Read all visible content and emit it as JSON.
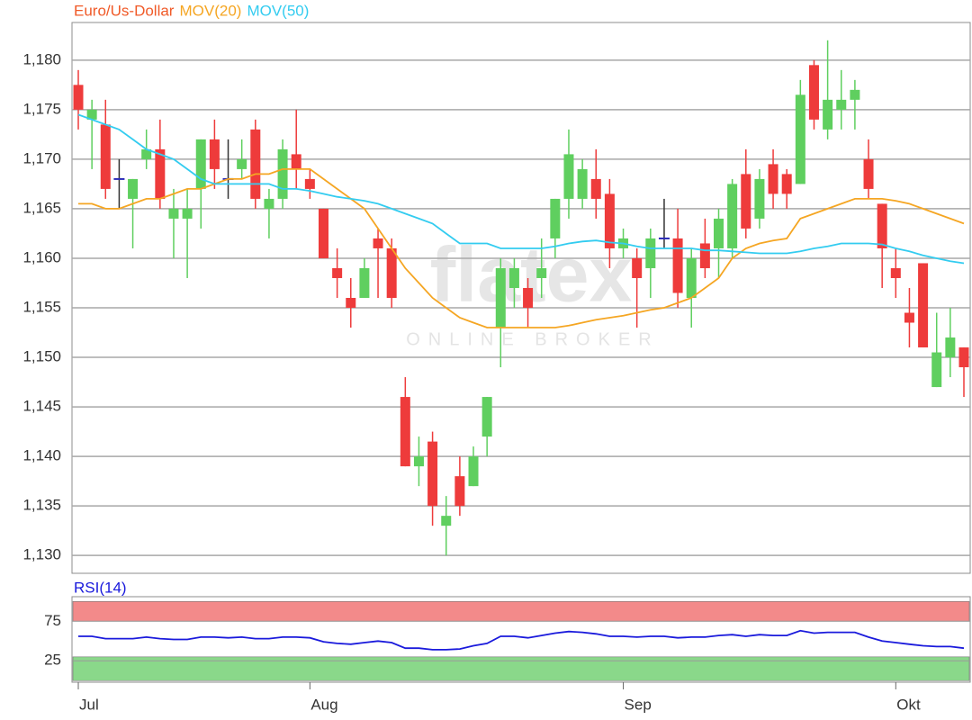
{
  "chart_data": [
    {
      "type": "candlestick",
      "name": "Euro/Us-Dollar",
      "name_color": "#f05a28",
      "watermark": "flatex",
      "watermark_tagline": "ONLINE BROKER",
      "categories": [
        "Jul",
        null,
        null,
        null,
        null,
        null,
        null,
        null,
        null,
        null,
        null,
        null,
        null,
        null,
        null,
        null,
        null,
        "Aug",
        null,
        null,
        null,
        null,
        null,
        null,
        null,
        null,
        null,
        null,
        null,
        null,
        null,
        null,
        null,
        null,
        null,
        null,
        null,
        null,
        null,
        null,
        "Sep",
        null,
        null,
        null,
        null,
        null,
        null,
        null,
        null,
        null,
        null,
        null,
        null,
        null,
        null,
        null,
        null,
        null,
        null,
        null,
        "Okt",
        null,
        null,
        null,
        null,
        null
      ],
      "open": [
        1.1775,
        1.174,
        1.1735,
        1.168,
        1.166,
        1.17,
        1.171,
        1.164,
        1.164,
        1.167,
        1.172,
        1.168,
        1.169,
        1.173,
        1.165,
        1.166,
        1.1705,
        1.168,
        1.165,
        1.159,
        1.156,
        1.156,
        1.162,
        1.161,
        1.146,
        1.139,
        1.1415,
        1.133,
        1.138,
        1.137,
        1.142,
        1.153,
        1.157,
        1.157,
        1.158,
        1.162,
        1.166,
        1.166,
        1.168,
        1.1665,
        1.161,
        1.16,
        1.159,
        1.162,
        1.162,
        1.156,
        1.1615,
        1.161,
        1.161,
        1.1685,
        1.164,
        1.1695,
        1.1685,
        1.1675,
        1.1795,
        1.173,
        1.175,
        1.176,
        1.17,
        1.1655,
        1.159,
        1.1545,
        1.1595,
        1.147,
        1.15,
        1.151
      ],
      "high": [
        1.179,
        1.176,
        1.176,
        1.17,
        1.168,
        1.173,
        1.174,
        1.167,
        1.167,
        1.172,
        1.174,
        1.172,
        1.172,
        1.174,
        1.167,
        1.172,
        1.175,
        1.169,
        1.165,
        1.161,
        1.158,
        1.16,
        1.163,
        1.162,
        1.148,
        1.142,
        1.1425,
        1.136,
        1.14,
        1.141,
        1.146,
        1.16,
        1.16,
        1.158,
        1.162,
        1.166,
        1.173,
        1.17,
        1.171,
        1.168,
        1.163,
        1.161,
        1.163,
        1.166,
        1.165,
        1.161,
        1.164,
        1.165,
        1.168,
        1.171,
        1.169,
        1.171,
        1.169,
        1.178,
        1.18,
        1.182,
        1.179,
        1.178,
        1.172,
        1.1655,
        1.161,
        1.157,
        1.1595,
        1.1545,
        1.155,
        1.151
      ],
      "low": [
        1.173,
        1.169,
        1.166,
        1.165,
        1.161,
        1.169,
        1.165,
        1.16,
        1.158,
        1.163,
        1.167,
        1.166,
        1.168,
        1.165,
        1.162,
        1.165,
        1.167,
        1.166,
        1.16,
        1.156,
        1.153,
        1.156,
        1.156,
        1.155,
        1.139,
        1.137,
        1.133,
        1.13,
        1.134,
        1.137,
        1.14,
        1.149,
        1.155,
        1.153,
        1.156,
        1.16,
        1.164,
        1.165,
        1.164,
        1.159,
        1.16,
        1.153,
        1.156,
        1.161,
        1.155,
        1.153,
        1.158,
        1.158,
        1.16,
        1.162,
        1.163,
        1.165,
        1.165,
        1.1675,
        1.173,
        1.172,
        1.173,
        1.173,
        1.166,
        1.157,
        1.156,
        1.151,
        1.151,
        1.147,
        1.148,
        1.146
      ],
      "close": [
        1.175,
        1.175,
        1.167,
        1.168,
        1.168,
        1.171,
        1.166,
        1.165,
        1.165,
        1.172,
        1.169,
        1.168,
        1.17,
        1.166,
        1.166,
        1.171,
        1.169,
        1.167,
        1.16,
        1.158,
        1.155,
        1.159,
        1.161,
        1.156,
        1.139,
        1.14,
        1.135,
        1.134,
        1.135,
        1.14,
        1.146,
        1.159,
        1.159,
        1.155,
        1.159,
        1.166,
        1.1705,
        1.169,
        1.166,
        1.161,
        1.162,
        1.158,
        1.162,
        1.162,
        1.1565,
        1.16,
        1.159,
        1.164,
        1.1675,
        1.163,
        1.168,
        1.1665,
        1.1665,
        1.1765,
        1.174,
        1.176,
        1.176,
        1.177,
        1.167,
        1.161,
        1.158,
        1.1535,
        1.151,
        1.1505,
        1.152,
        1.149
      ],
      "up_color": "#5fcf5f",
      "down_color": "#ee3b3b",
      "doji_color": "#2a2ab8",
      "overlays": [
        {
          "name": "MOV(20)",
          "color": "#f5a623",
          "values": [
            1.1655,
            1.1655,
            1.165,
            1.165,
            1.1655,
            1.166,
            1.166,
            1.1665,
            1.167,
            1.167,
            1.1675,
            1.168,
            1.168,
            1.1685,
            1.1685,
            1.169,
            1.169,
            1.169,
            1.168,
            1.167,
            1.166,
            1.165,
            1.163,
            1.161,
            1.159,
            1.1575,
            1.156,
            1.155,
            1.154,
            1.1535,
            1.153,
            1.153,
            1.153,
            1.153,
            1.153,
            1.153,
            1.1532,
            1.1535,
            1.1538,
            1.154,
            1.1542,
            1.1545,
            1.1548,
            1.155,
            1.1555,
            1.156,
            1.157,
            1.158,
            1.16,
            1.161,
            1.1615,
            1.1618,
            1.162,
            1.164,
            1.1645,
            1.165,
            1.1655,
            1.166,
            1.166,
            1.166,
            1.1658,
            1.1655,
            1.165,
            1.1645,
            1.164,
            1.1635
          ]
        },
        {
          "name": "MOV(50)",
          "color": "#33ccf0",
          "values": [
            1.1745,
            1.174,
            1.1735,
            1.173,
            1.172,
            1.171,
            1.1705,
            1.17,
            1.169,
            1.168,
            1.1675,
            1.1675,
            1.1675,
            1.1675,
            1.1675,
            1.167,
            1.167,
            1.1668,
            1.1665,
            1.1662,
            1.166,
            1.1658,
            1.1655,
            1.165,
            1.1645,
            1.164,
            1.1635,
            1.1625,
            1.1615,
            1.1615,
            1.1615,
            1.161,
            1.161,
            1.161,
            1.161,
            1.1612,
            1.1615,
            1.1617,
            1.1618,
            1.1616,
            1.1615,
            1.1612,
            1.161,
            1.161,
            1.161,
            1.161,
            1.1608,
            1.1608,
            1.1607,
            1.1606,
            1.1605,
            1.1605,
            1.1605,
            1.1607,
            1.161,
            1.1612,
            1.1615,
            1.1615,
            1.1615,
            1.1614,
            1.161,
            1.1607,
            1.1603,
            1.16,
            1.1597,
            1.1595
          ]
        }
      ],
      "ylim": [
        1.1282,
        1.1838
      ],
      "yticks": [
        {
          "value": 1.13,
          "label": "1,130"
        },
        {
          "value": 1.135,
          "label": "1,135"
        },
        {
          "value": 1.14,
          "label": "1,140"
        },
        {
          "value": 1.145,
          "label": "1,145"
        },
        {
          "value": 1.15,
          "label": "1,150"
        },
        {
          "value": 1.155,
          "label": "1,155"
        },
        {
          "value": 1.16,
          "label": "1,160"
        },
        {
          "value": 1.165,
          "label": "1,165"
        },
        {
          "value": 1.17,
          "label": "1,170"
        },
        {
          "value": 1.175,
          "label": "1,175"
        },
        {
          "value": 1.18,
          "label": "1,180"
        }
      ],
      "grid": true
    },
    {
      "type": "line",
      "series": [
        {
          "name": "RSI(14)",
          "color": "#1a1adc",
          "values": [
            56,
            56,
            53,
            53,
            53,
            55,
            53,
            52,
            52,
            55,
            55,
            54,
            55,
            53,
            53,
            55,
            55,
            54,
            49,
            47,
            46,
            48,
            50,
            48,
            41,
            41,
            39,
            39,
            40,
            44,
            47,
            56,
            56,
            54,
            57,
            60,
            62,
            61,
            59,
            56,
            56,
            55,
            56,
            56,
            54,
            55,
            55,
            57,
            58,
            56,
            58,
            57,
            57,
            63,
            60,
            61,
            61,
            61,
            55,
            50,
            48,
            46,
            44,
            43,
            43,
            41
          ]
        }
      ],
      "bands": [
        {
          "from": 75,
          "to": 100,
          "color": "#f38a8a"
        },
        {
          "from": 0,
          "to": 30,
          "color": "#8ad88a"
        }
      ],
      "ylim": [
        -2,
        106
      ],
      "yticks": [
        25,
        75
      ],
      "grid": true
    }
  ]
}
